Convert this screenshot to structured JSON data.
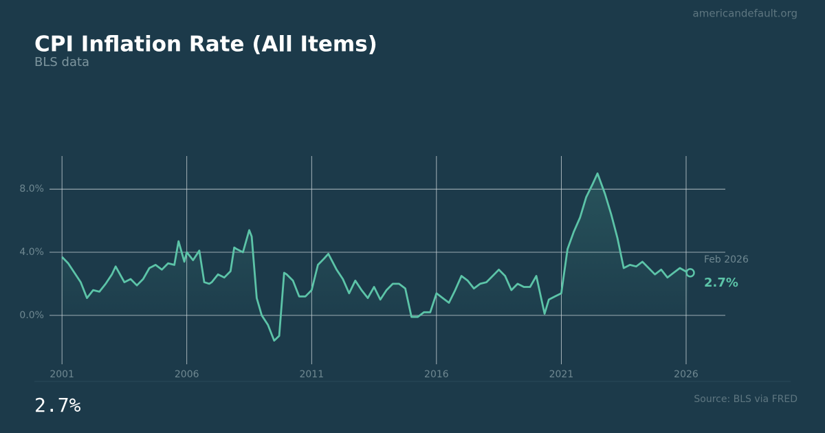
{
  "chart_data": {
    "type": "line",
    "title": "CPI Inflation Rate (All Items)",
    "subtitle": "BLS data",
    "site": "americandefault.org",
    "source": "Source: BLS via FRED",
    "headline": "2.7%",
    "latest_date": "Feb 2026",
    "latest_label": "2.7%",
    "x": [
      2001,
      2001.25,
      2001.5,
      2001.75,
      2002,
      2002.25,
      2002.5,
      2002.75,
      2003,
      2003.15,
      2003.5,
      2003.75,
      2004,
      2004.25,
      2004.5,
      2004.75,
      2005,
      2005.25,
      2005.5,
      2005.67,
      2005.9,
      2006,
      2006.25,
      2006.5,
      2006.7,
      2006.9,
      2007,
      2007.25,
      2007.5,
      2007.75,
      2007.9,
      2008,
      2008.25,
      2008.5,
      2008.6,
      2008.8,
      2009,
      2009.25,
      2009.5,
      2009.7,
      2009.9,
      2010,
      2010.25,
      2010.5,
      2010.75,
      2011,
      2011.25,
      2011.5,
      2011.67,
      2012,
      2012.25,
      2012.5,
      2012.75,
      2013,
      2013.25,
      2013.5,
      2013.75,
      2014,
      2014.25,
      2014.5,
      2014.75,
      2015,
      2015.25,
      2015.5,
      2015.75,
      2016,
      2016.25,
      2016.5,
      2016.75,
      2017,
      2017.25,
      2017.5,
      2017.75,
      2018,
      2018.25,
      2018.5,
      2018.75,
      2019,
      2019.25,
      2019.5,
      2019.75,
      2020,
      2020.33,
      2020.5,
      2020.75,
      2021,
      2021.25,
      2021.5,
      2021.75,
      2022,
      2022.25,
      2022.45,
      2022.75,
      2023,
      2023.25,
      2023.5,
      2023.75,
      2024,
      2024.25,
      2024.5,
      2024.75,
      2025,
      2025.25,
      2025.5,
      2025.75,
      2026.083
    ],
    "series": [
      {
        "name": "CPI",
        "color": "#5cc4a8",
        "values": [
          3.7,
          3.3,
          2.7,
          2.1,
          1.1,
          1.6,
          1.5,
          2.0,
          2.6,
          3.1,
          2.1,
          2.3,
          1.9,
          2.3,
          3.0,
          3.2,
          2.9,
          3.3,
          3.2,
          4.7,
          3.4,
          4.0,
          3.5,
          4.1,
          2.1,
          2.0,
          2.1,
          2.6,
          2.4,
          2.8,
          4.3,
          4.2,
          4.0,
          5.4,
          5.0,
          1.1,
          0.0,
          -0.6,
          -1.6,
          -1.3,
          2.7,
          2.6,
          2.2,
          1.2,
          1.2,
          1.6,
          3.2,
          3.6,
          3.9,
          2.9,
          2.3,
          1.4,
          2.2,
          1.6,
          1.1,
          1.8,
          1.0,
          1.6,
          2.0,
          2.0,
          1.7,
          -0.1,
          -0.1,
          0.2,
          0.2,
          1.4,
          1.1,
          0.8,
          1.6,
          2.5,
          2.2,
          1.7,
          2.0,
          2.1,
          2.5,
          2.9,
          2.5,
          1.6,
          2.0,
          1.8,
          1.8,
          2.5,
          0.1,
          1.0,
          1.2,
          1.4,
          4.2,
          5.3,
          6.2,
          7.5,
          8.3,
          9.0,
          7.7,
          6.4,
          4.9,
          3.0,
          3.2,
          3.1,
          3.4,
          3.0,
          2.6,
          2.9,
          2.4,
          2.7,
          3.0,
          2.7
        ]
      }
    ],
    "xlim": [
      2000.5,
      2027.57
    ],
    "ylim": [
      -3.1,
      10.1
    ],
    "xticks": [
      2001,
      2006,
      2011,
      2016,
      2021,
      2026
    ],
    "yticks": [
      {
        "value": 0,
        "label": "0.0%"
      },
      {
        "value": 4,
        "label": "4.0%"
      },
      {
        "value": 8,
        "label": "8.0%"
      }
    ],
    "grid": true
  }
}
